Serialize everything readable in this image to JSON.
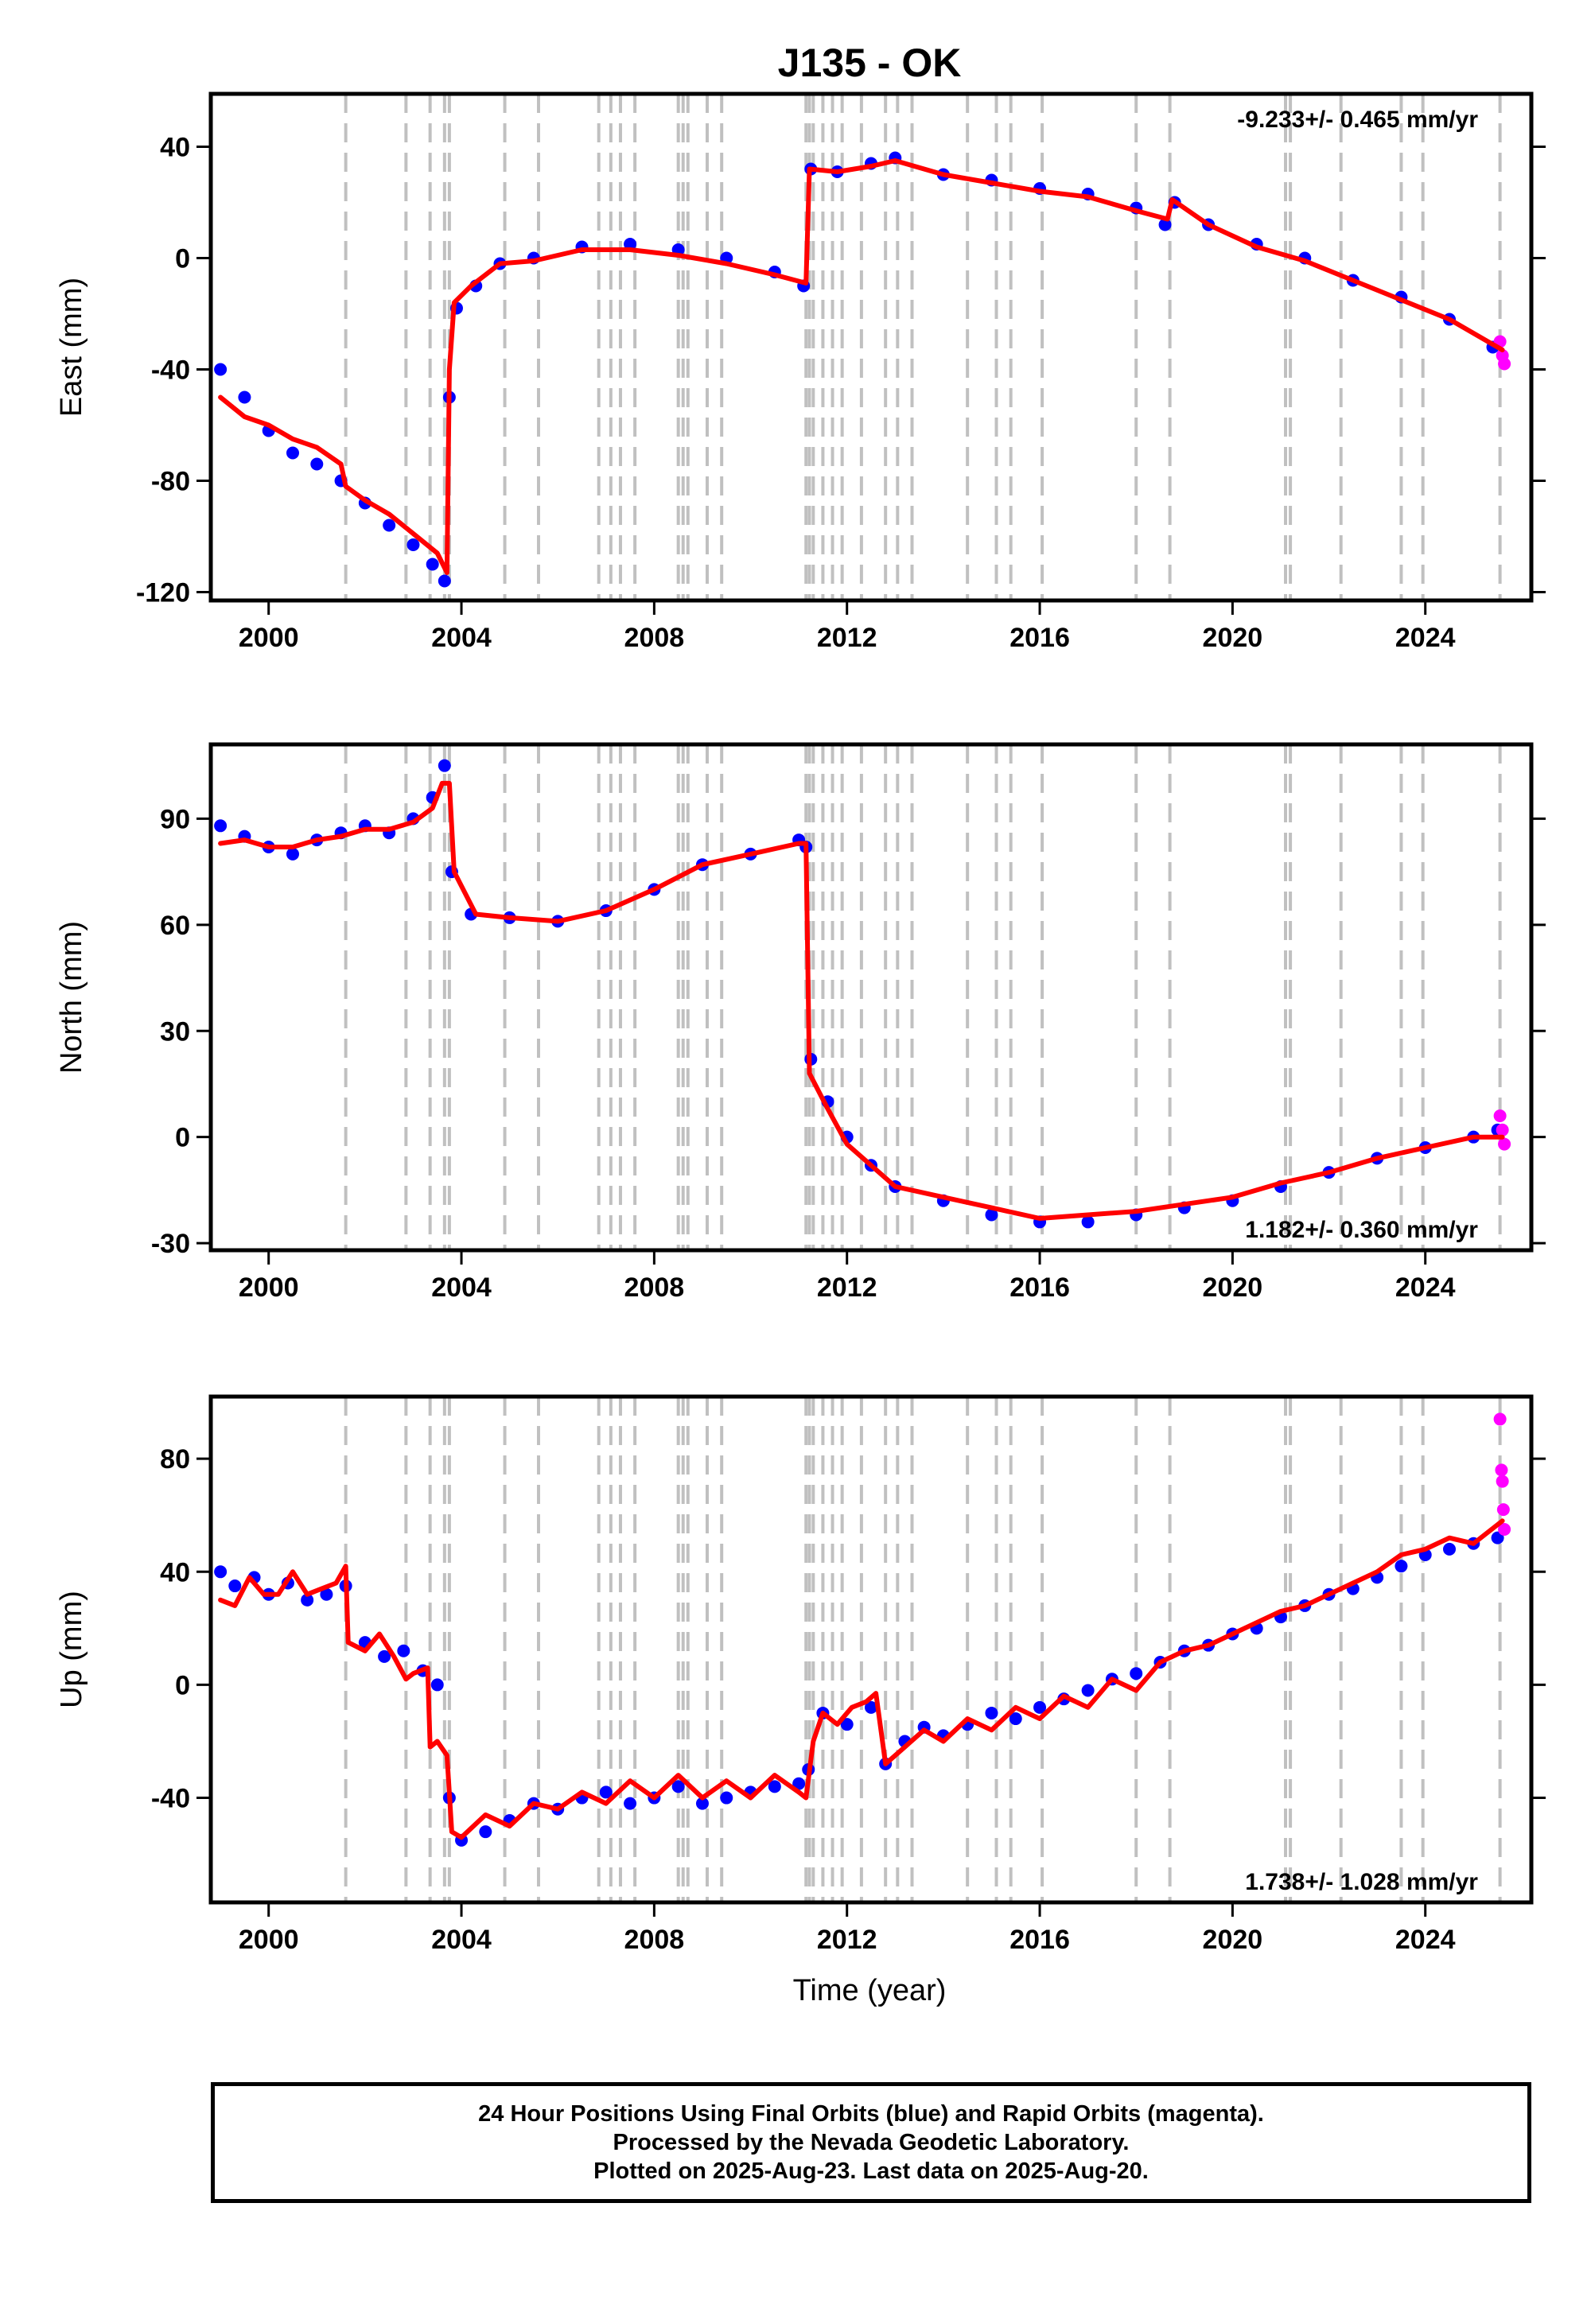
{
  "title": "J135 - OK",
  "xlabel": "Time (year)",
  "colors": {
    "final_orbits": "#0000ff",
    "rapid_orbits": "#ff00ff",
    "model_fit": "#ff0000",
    "event_lines": "#c0c0c0",
    "axes": "#000000"
  },
  "x_ticks": [
    2000,
    2004,
    2008,
    2012,
    2016,
    2020,
    2024
  ],
  "xlim": [
    1998.8,
    2026.2
  ],
  "event_lines": [
    2001.6,
    2002.85,
    2003.35,
    2003.65,
    2003.75,
    2004.9,
    2005.6,
    2006.85,
    2007.1,
    2007.3,
    2007.6,
    2008.5,
    2008.6,
    2008.7,
    2009.1,
    2009.4,
    2011.15,
    2011.22,
    2011.3,
    2011.5,
    2011.7,
    2011.9,
    2012.3,
    2012.8,
    2013.05,
    2013.35,
    2014.5,
    2015.1,
    2015.4,
    2016.05,
    2018.0,
    2018.7,
    2021.1,
    2021.2,
    2022.25,
    2023.5,
    2023.95,
    2025.55
  ],
  "caption": {
    "line1": "24 Hour Positions Using Final Orbits (blue) and Rapid Orbits (magenta).",
    "line2": "Processed by the Nevada Geodetic Laboratory.",
    "line3": "Plotted on 2025-Aug-23. Last data on 2025-Aug-20."
  },
  "chart_data": [
    {
      "type": "scatter",
      "panel": "east",
      "ylabel": "East (mm)",
      "ylim": [
        -123,
        59
      ],
      "y_ticks": [
        -120,
        -80,
        -40,
        0,
        40
      ],
      "rate_annotation": "-9.233+/- 0.465 mm/yr",
      "annotation_position": "top-right",
      "series": [
        {
          "name": "Final Orbits",
          "style": "points",
          "color": "#0000ff",
          "x": [
            1999.0,
            1999.5,
            2000.0,
            2000.5,
            2001.0,
            2001.5,
            2002.0,
            2002.5,
            2003.0,
            2003.4,
            2003.65,
            2003.75,
            2003.9,
            2004.3,
            2004.8,
            2005.5,
            2006.5,
            2007.5,
            2008.5,
            2009.5,
            2010.5,
            2011.1,
            2011.25,
            2011.8,
            2012.5,
            2013.0,
            2014.0,
            2015.0,
            2016.0,
            2017.0,
            2018.0,
            2018.6,
            2018.8,
            2019.5,
            2020.5,
            2021.5,
            2022.5,
            2023.5,
            2024.5,
            2025.4
          ],
          "y": [
            -40,
            -50,
            -62,
            -70,
            -74,
            -80,
            -88,
            -96,
            -103,
            -110,
            -116,
            -50,
            -18,
            -10,
            -2,
            0,
            4,
            5,
            3,
            0,
            -5,
            -10,
            32,
            31,
            34,
            36,
            30,
            28,
            25,
            23,
            18,
            12,
            20,
            12,
            5,
            0,
            -8,
            -14,
            -22,
            -32
          ]
        },
        {
          "name": "Rapid Orbits",
          "style": "points",
          "color": "#ff00ff",
          "x": [
            2025.55,
            2025.6,
            2025.64
          ],
          "y": [
            -30,
            -35,
            -38
          ]
        },
        {
          "name": "Model",
          "style": "line",
          "color": "#ff0000",
          "x": [
            1999.0,
            1999.5,
            2000.0,
            2000.5,
            2001.0,
            2001.5,
            2001.6,
            2002.0,
            2002.5,
            2003.0,
            2003.5,
            2003.7,
            2003.75,
            2003.85,
            2004.2,
            2004.8,
            2005.5,
            2006.5,
            2007.5,
            2008.5,
            2009.5,
            2010.5,
            2011.15,
            2011.22,
            2011.8,
            2012.5,
            2013.0,
            2014.0,
            2015.0,
            2016.0,
            2017.0,
            2018.0,
            2018.65,
            2018.75,
            2019.5,
            2020.5,
            2021.5,
            2022.5,
            2023.5,
            2024.5,
            2025.6
          ],
          "y": [
            -50,
            -57,
            -60,
            -65,
            -68,
            -74,
            -82,
            -87,
            -92,
            -99,
            -106,
            -113,
            -40,
            -16,
            -10,
            -2,
            -1,
            3,
            3,
            1,
            -2,
            -6,
            -9,
            32,
            31,
            33,
            35,
            30,
            27,
            24,
            22,
            17,
            14,
            21,
            12,
            4,
            -1,
            -8,
            -15,
            -22,
            -33
          ]
        }
      ]
    },
    {
      "type": "scatter",
      "panel": "north",
      "ylabel": "North (mm)",
      "ylim": [
        -32,
        111
      ],
      "y_ticks": [
        -30,
        0,
        30,
        60,
        90
      ],
      "rate_annotation": "1.182+/- 0.360 mm/yr",
      "annotation_position": "bottom-right",
      "series": [
        {
          "name": "Final Orbits",
          "style": "points",
          "color": "#0000ff",
          "x": [
            1999.0,
            1999.5,
            2000.0,
            2000.5,
            2001.0,
            2001.5,
            2002.0,
            2002.5,
            2003.0,
            2003.4,
            2003.65,
            2003.8,
            2004.2,
            2005.0,
            2006.0,
            2007.0,
            2008.0,
            2009.0,
            2010.0,
            2011.0,
            2011.15,
            2011.25,
            2011.6,
            2012.0,
            2012.5,
            2013.0,
            2014.0,
            2015.0,
            2016.0,
            2017.0,
            2018.0,
            2019.0,
            2020.0,
            2021.0,
            2022.0,
            2023.0,
            2024.0,
            2025.0,
            2025.5
          ],
          "y": [
            88,
            85,
            82,
            80,
            84,
            86,
            88,
            86,
            90,
            96,
            105,
            75,
            63,
            62,
            61,
            64,
            70,
            77,
            80,
            84,
            82,
            22,
            10,
            0,
            -8,
            -14,
            -18,
            -22,
            -24,
            -24,
            -22,
            -20,
            -18,
            -14,
            -10,
            -6,
            -3,
            0,
            2
          ]
        },
        {
          "name": "Rapid Orbits",
          "style": "points",
          "color": "#ff00ff",
          "x": [
            2025.55,
            2025.6,
            2025.64
          ],
          "y": [
            6,
            2,
            -2
          ]
        },
        {
          "name": "Model",
          "style": "line",
          "color": "#ff0000",
          "x": [
            1999.0,
            1999.5,
            2000.0,
            2000.5,
            2001.0,
            2001.5,
            2002.0,
            2002.5,
            2003.0,
            2003.4,
            2003.6,
            2003.75,
            2003.85,
            2004.3,
            2005.0,
            2006.0,
            2007.0,
            2008.0,
            2009.0,
            2010.0,
            2011.0,
            2011.15,
            2011.22,
            2011.6,
            2012.0,
            2012.5,
            2013.0,
            2014.0,
            2015.0,
            2016.0,
            2017.0,
            2018.0,
            2019.0,
            2020.0,
            2021.0,
            2022.0,
            2023.0,
            2024.0,
            2025.0,
            2025.6
          ],
          "y": [
            83,
            84,
            82,
            82,
            84,
            85,
            87,
            87,
            89,
            93,
            100,
            100,
            75,
            63,
            62,
            61,
            64,
            70,
            77,
            80,
            83,
            83,
            18,
            8,
            -2,
            -8,
            -14,
            -17,
            -20,
            -23,
            -22,
            -21,
            -19,
            -17,
            -13,
            -10,
            -6,
            -3,
            0,
            0
          ]
        }
      ]
    },
    {
      "type": "scatter",
      "panel": "up",
      "ylabel": "Up (mm)",
      "ylim": [
        -77,
        102
      ],
      "y_ticks": [
        -40,
        0,
        40,
        80
      ],
      "rate_annotation": "1.738+/- 1.028 mm/yr",
      "annotation_position": "bottom-right",
      "series": [
        {
          "name": "Final Orbits",
          "style": "points",
          "color": "#0000ff",
          "x": [
            1999.0,
            1999.3,
            1999.7,
            2000.0,
            2000.4,
            2000.8,
            2001.2,
            2001.6,
            2002.0,
            2002.4,
            2002.8,
            2003.2,
            2003.5,
            2003.75,
            2004.0,
            2004.5,
            2005.0,
            2005.5,
            2006.0,
            2006.5,
            2007.0,
            2007.5,
            2008.0,
            2008.5,
            2009.0,
            2009.5,
            2010.0,
            2010.5,
            2011.0,
            2011.2,
            2011.5,
            2012.0,
            2012.5,
            2012.8,
            2013.2,
            2013.6,
            2014.0,
            2014.5,
            2015.0,
            2015.5,
            2016.0,
            2016.5,
            2017.0,
            2017.5,
            2018.0,
            2018.5,
            2019.0,
            2019.5,
            2020.0,
            2020.5,
            2021.0,
            2021.5,
            2022.0,
            2022.5,
            2023.0,
            2023.5,
            2024.0,
            2024.5,
            2025.0,
            2025.5
          ],
          "y": [
            40,
            35,
            38,
            32,
            36,
            30,
            32,
            35,
            15,
            10,
            12,
            5,
            0,
            -40,
            -55,
            -52,
            -48,
            -42,
            -44,
            -40,
            -38,
            -42,
            -40,
            -36,
            -42,
            -40,
            -38,
            -36,
            -35,
            -30,
            -10,
            -14,
            -8,
            -28,
            -20,
            -15,
            -18,
            -14,
            -10,
            -12,
            -8,
            -5,
            -2,
            2,
            4,
            8,
            12,
            14,
            18,
            20,
            24,
            28,
            32,
            34,
            38,
            42,
            46,
            48,
            50,
            52
          ]
        },
        {
          "name": "Rapid Orbits",
          "style": "points",
          "color": "#ff00ff",
          "x": [
            2025.55,
            2025.58,
            2025.6,
            2025.62,
            2025.64
          ],
          "y": [
            94,
            76,
            72,
            62,
            55
          ]
        },
        {
          "name": "Model",
          "style": "line",
          "color": "#ff0000",
          "x": [
            1999.0,
            1999.3,
            1999.6,
            1999.9,
            2000.2,
            2000.5,
            2000.8,
            2001.1,
            2001.4,
            2001.6,
            2001.65,
            2002.0,
            2002.3,
            2002.6,
            2002.85,
            2003.0,
            2003.3,
            2003.35,
            2003.5,
            2003.7,
            2003.8,
            2004.0,
            2004.5,
            2005.0,
            2005.5,
            2006.0,
            2006.5,
            2007.0,
            2007.5,
            2008.0,
            2008.5,
            2009.0,
            2009.5,
            2010.0,
            2010.5,
            2011.0,
            2011.15,
            2011.3,
            2011.5,
            2011.8,
            2012.1,
            2012.4,
            2012.6,
            2012.8,
            2013.2,
            2013.6,
            2014.0,
            2014.5,
            2015.0,
            2015.5,
            2016.0,
            2016.5,
            2017.0,
            2017.5,
            2018.0,
            2018.5,
            2019.0,
            2019.5,
            2020.0,
            2020.5,
            2021.0,
            2021.5,
            2022.0,
            2022.5,
            2023.0,
            2023.5,
            2024.0,
            2024.5,
            2025.0,
            2025.6
          ],
          "y": [
            30,
            28,
            38,
            32,
            32,
            40,
            32,
            34,
            36,
            42,
            15,
            12,
            18,
            10,
            2,
            4,
            6,
            -22,
            -20,
            -25,
            -52,
            -54,
            -46,
            -50,
            -42,
            -44,
            -38,
            -42,
            -34,
            -40,
            -32,
            -40,
            -34,
            -40,
            -32,
            -38,
            -40,
            -20,
            -10,
            -14,
            -8,
            -6,
            -3,
            -28,
            -22,
            -16,
            -20,
            -12,
            -16,
            -8,
            -12,
            -4,
            -8,
            2,
            -2,
            8,
            12,
            14,
            18,
            22,
            26,
            28,
            32,
            36,
            40,
            46,
            48,
            52,
            50,
            58
          ]
        }
      ]
    }
  ]
}
